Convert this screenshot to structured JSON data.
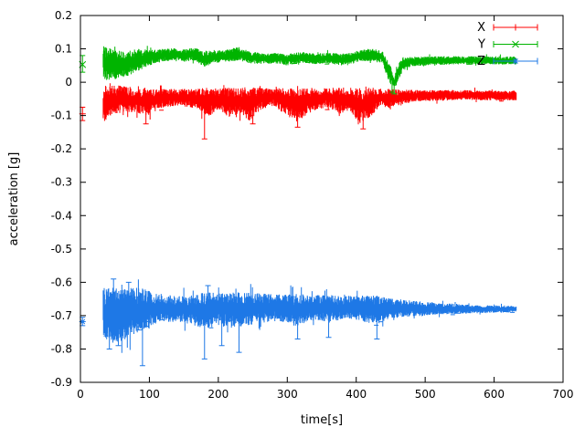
{
  "chart_data": {
    "type": "scatter",
    "style": "points-with-yerrorbars",
    "title": "",
    "xlabel": "time[s]",
    "ylabel": "acceleration [g]",
    "xlim": [
      0,
      700
    ],
    "ylim": [
      -0.9,
      0.2
    ],
    "grid": false,
    "sample_step": 0.5,
    "x_ticks": [
      {
        "v": 0,
        "label": "0"
      },
      {
        "v": 100,
        "label": "100"
      },
      {
        "v": 200,
        "label": "200"
      },
      {
        "v": 300,
        "label": "300"
      },
      {
        "v": 400,
        "label": "400"
      },
      {
        "v": 500,
        "label": "500"
      },
      {
        "v": 600,
        "label": "600"
      },
      {
        "v": 700,
        "label": "700"
      }
    ],
    "y_ticks": [
      {
        "v": 0.2,
        "label": "0.2"
      },
      {
        "v": 0.1,
        "label": "0.1"
      },
      {
        "v": 0,
        "label": "0"
      },
      {
        "v": -0.1,
        "label": "-0.1"
      },
      {
        "v": -0.2,
        "label": "-0.2"
      },
      {
        "v": -0.3,
        "label": "-0.3"
      },
      {
        "v": -0.4,
        "label": "-0.4"
      },
      {
        "v": -0.5,
        "label": "-0.5"
      },
      {
        "v": -0.6,
        "label": "-0.6"
      },
      {
        "v": -0.7,
        "label": "-0.7"
      },
      {
        "v": -0.8,
        "label": "-0.8"
      },
      {
        "v": -0.9,
        "label": "-0.9"
      }
    ],
    "legend": {
      "position": "top-right",
      "entries": [
        "X",
        "Y",
        "Z"
      ]
    },
    "series": [
      {
        "name": "X",
        "color": "#ff0000",
        "marker": "plus",
        "t_start": 33,
        "t_end": 632,
        "start_point": {
          "t": 3,
          "value": -0.095,
          "lo": -0.115,
          "hi": -0.075
        },
        "envelope": [
          [
            33,
            -0.065,
            0.055
          ],
          [
            45,
            -0.055,
            0.045
          ],
          [
            60,
            -0.05,
            0.04
          ],
          [
            80,
            -0.055,
            0.035
          ],
          [
            95,
            -0.06,
            0.045
          ],
          [
            110,
            -0.05,
            0.03
          ],
          [
            140,
            -0.045,
            0.025
          ],
          [
            170,
            -0.05,
            0.03
          ],
          [
            185,
            -0.06,
            0.045
          ],
          [
            200,
            -0.05,
            0.03
          ],
          [
            215,
            -0.06,
            0.045
          ],
          [
            230,
            -0.055,
            0.04
          ],
          [
            245,
            -0.065,
            0.05
          ],
          [
            260,
            -0.05,
            0.035
          ],
          [
            280,
            -0.045,
            0.025
          ],
          [
            300,
            -0.06,
            0.045
          ],
          [
            315,
            -0.07,
            0.05
          ],
          [
            330,
            -0.055,
            0.04
          ],
          [
            345,
            -0.05,
            0.03
          ],
          [
            360,
            -0.045,
            0.03
          ],
          [
            375,
            -0.055,
            0.04
          ],
          [
            390,
            -0.05,
            0.035
          ],
          [
            405,
            -0.07,
            0.055
          ],
          [
            420,
            -0.06,
            0.045
          ],
          [
            435,
            -0.045,
            0.025
          ],
          [
            450,
            -0.05,
            0.03
          ],
          [
            465,
            -0.045,
            0.022
          ],
          [
            480,
            -0.04,
            0.018
          ],
          [
            520,
            -0.04,
            0.016
          ],
          [
            560,
            -0.038,
            0.015
          ],
          [
            600,
            -0.04,
            0.015
          ],
          [
            632,
            -0.04,
            0.015
          ]
        ],
        "spikes": [
          [
            180,
            -0.17
          ],
          [
            95,
            -0.125
          ],
          [
            250,
            -0.125
          ],
          [
            315,
            -0.135
          ],
          [
            410,
            -0.14
          ]
        ]
      },
      {
        "name": "Y",
        "color": "#00b400",
        "marker": "cross",
        "t_start": 33,
        "t_end": 632,
        "start_point": {
          "t": 3,
          "value": 0.053,
          "lo": 0.03,
          "hi": 0.08
        },
        "envelope": [
          [
            33,
            0.06,
            0.05
          ],
          [
            40,
            0.055,
            0.05
          ],
          [
            50,
            0.05,
            0.045
          ],
          [
            60,
            0.055,
            0.04
          ],
          [
            75,
            0.06,
            0.038
          ],
          [
            90,
            0.07,
            0.03
          ],
          [
            105,
            0.075,
            0.022
          ],
          [
            120,
            0.08,
            0.02
          ],
          [
            135,
            0.085,
            0.018
          ],
          [
            150,
            0.08,
            0.02
          ],
          [
            165,
            0.085,
            0.02
          ],
          [
            180,
            0.07,
            0.025
          ],
          [
            195,
            0.075,
            0.018
          ],
          [
            215,
            0.08,
            0.02
          ],
          [
            230,
            0.085,
            0.02
          ],
          [
            245,
            0.075,
            0.018
          ],
          [
            265,
            0.07,
            0.016
          ],
          [
            285,
            0.072,
            0.016
          ],
          [
            300,
            0.068,
            0.018
          ],
          [
            320,
            0.075,
            0.016
          ],
          [
            340,
            0.07,
            0.016
          ],
          [
            360,
            0.072,
            0.016
          ],
          [
            380,
            0.068,
            0.018
          ],
          [
            395,
            0.072,
            0.016
          ],
          [
            410,
            0.08,
            0.018
          ],
          [
            425,
            0.082,
            0.018
          ],
          [
            438,
            0.075,
            0.02
          ],
          [
            448,
            0.03,
            0.03
          ],
          [
            455,
            -0.005,
            0.02
          ],
          [
            461,
            0.03,
            0.025
          ],
          [
            468,
            0.055,
            0.02
          ],
          [
            480,
            0.062,
            0.014
          ],
          [
            520,
            0.065,
            0.013
          ],
          [
            560,
            0.066,
            0.012
          ],
          [
            600,
            0.065,
            0.012
          ],
          [
            632,
            0.065,
            0.012
          ]
        ],
        "spikes": [
          [
            452,
            -0.03
          ],
          [
            455,
            -0.035
          ]
        ]
      },
      {
        "name": "Z",
        "color": "#1e78e6",
        "marker": "asterisk",
        "t_start": 33,
        "t_end": 632,
        "start_point": {
          "t": 3,
          "value": -0.718,
          "lo": -0.73,
          "hi": -0.705
        },
        "envelope": [
          [
            33,
            -0.69,
            0.075
          ],
          [
            45,
            -0.7,
            0.085
          ],
          [
            60,
            -0.695,
            0.08
          ],
          [
            75,
            -0.69,
            0.075
          ],
          [
            90,
            -0.685,
            0.07
          ],
          [
            105,
            -0.68,
            0.05
          ],
          [
            120,
            -0.678,
            0.042
          ],
          [
            140,
            -0.68,
            0.04
          ],
          [
            160,
            -0.682,
            0.045
          ],
          [
            180,
            -0.685,
            0.055
          ],
          [
            200,
            -0.68,
            0.05
          ],
          [
            220,
            -0.683,
            0.055
          ],
          [
            240,
            -0.68,
            0.05
          ],
          [
            260,
            -0.678,
            0.045
          ],
          [
            280,
            -0.676,
            0.04
          ],
          [
            300,
            -0.68,
            0.045
          ],
          [
            315,
            -0.683,
            0.05
          ],
          [
            330,
            -0.678,
            0.04
          ],
          [
            345,
            -0.676,
            0.038
          ],
          [
            360,
            -0.68,
            0.042
          ],
          [
            375,
            -0.678,
            0.038
          ],
          [
            395,
            -0.676,
            0.035
          ],
          [
            410,
            -0.68,
            0.04
          ],
          [
            430,
            -0.682,
            0.042
          ],
          [
            450,
            -0.679,
            0.03
          ],
          [
            470,
            -0.678,
            0.026
          ],
          [
            490,
            -0.679,
            0.022
          ],
          [
            520,
            -0.68,
            0.018
          ],
          [
            550,
            -0.68,
            0.015
          ],
          [
            580,
            -0.681,
            0.012
          ],
          [
            610,
            -0.68,
            0.011
          ],
          [
            632,
            -0.68,
            0.01
          ]
        ],
        "spikes": [
          [
            42,
            -0.8
          ],
          [
            48,
            -0.59
          ],
          [
            55,
            -0.79
          ],
          [
            70,
            -0.6
          ],
          [
            90,
            -0.85
          ],
          [
            180,
            -0.83
          ],
          [
            185,
            -0.61
          ],
          [
            205,
            -0.79
          ],
          [
            230,
            -0.81
          ],
          [
            315,
            -0.77
          ],
          [
            360,
            -0.765
          ],
          [
            430,
            -0.77
          ]
        ]
      }
    ]
  }
}
